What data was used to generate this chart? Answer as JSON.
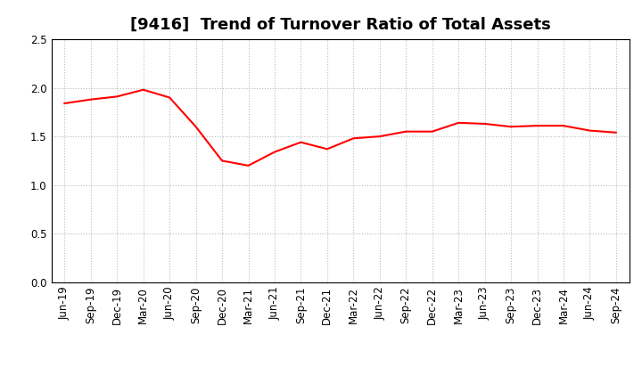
{
  "title": "[9416]  Trend of Turnover Ratio of Total Assets",
  "labels": [
    "Jun-19",
    "Sep-19",
    "Dec-19",
    "Mar-20",
    "Jun-20",
    "Sep-20",
    "Dec-20",
    "Mar-21",
    "Jun-21",
    "Sep-21",
    "Dec-21",
    "Mar-22",
    "Jun-22",
    "Sep-22",
    "Dec-22",
    "Mar-23",
    "Jun-23",
    "Sep-23",
    "Dec-23",
    "Mar-24",
    "Jun-24",
    "Sep-24"
  ],
  "values": [
    1.84,
    1.88,
    1.91,
    1.98,
    1.9,
    1.6,
    1.25,
    1.2,
    1.34,
    1.44,
    1.37,
    1.48,
    1.5,
    1.55,
    1.55,
    1.64,
    1.63,
    1.6,
    1.61,
    1.61,
    1.56,
    1.54
  ],
  "line_color": "#ff0000",
  "line_width": 1.5,
  "ylim": [
    0.0,
    2.5
  ],
  "yticks": [
    0.0,
    0.5,
    1.0,
    1.5,
    2.0,
    2.5
  ],
  "grid_color": "#bbbbbb",
  "bg_color": "#ffffff",
  "title_fontsize": 13,
  "tick_fontsize": 8.5
}
